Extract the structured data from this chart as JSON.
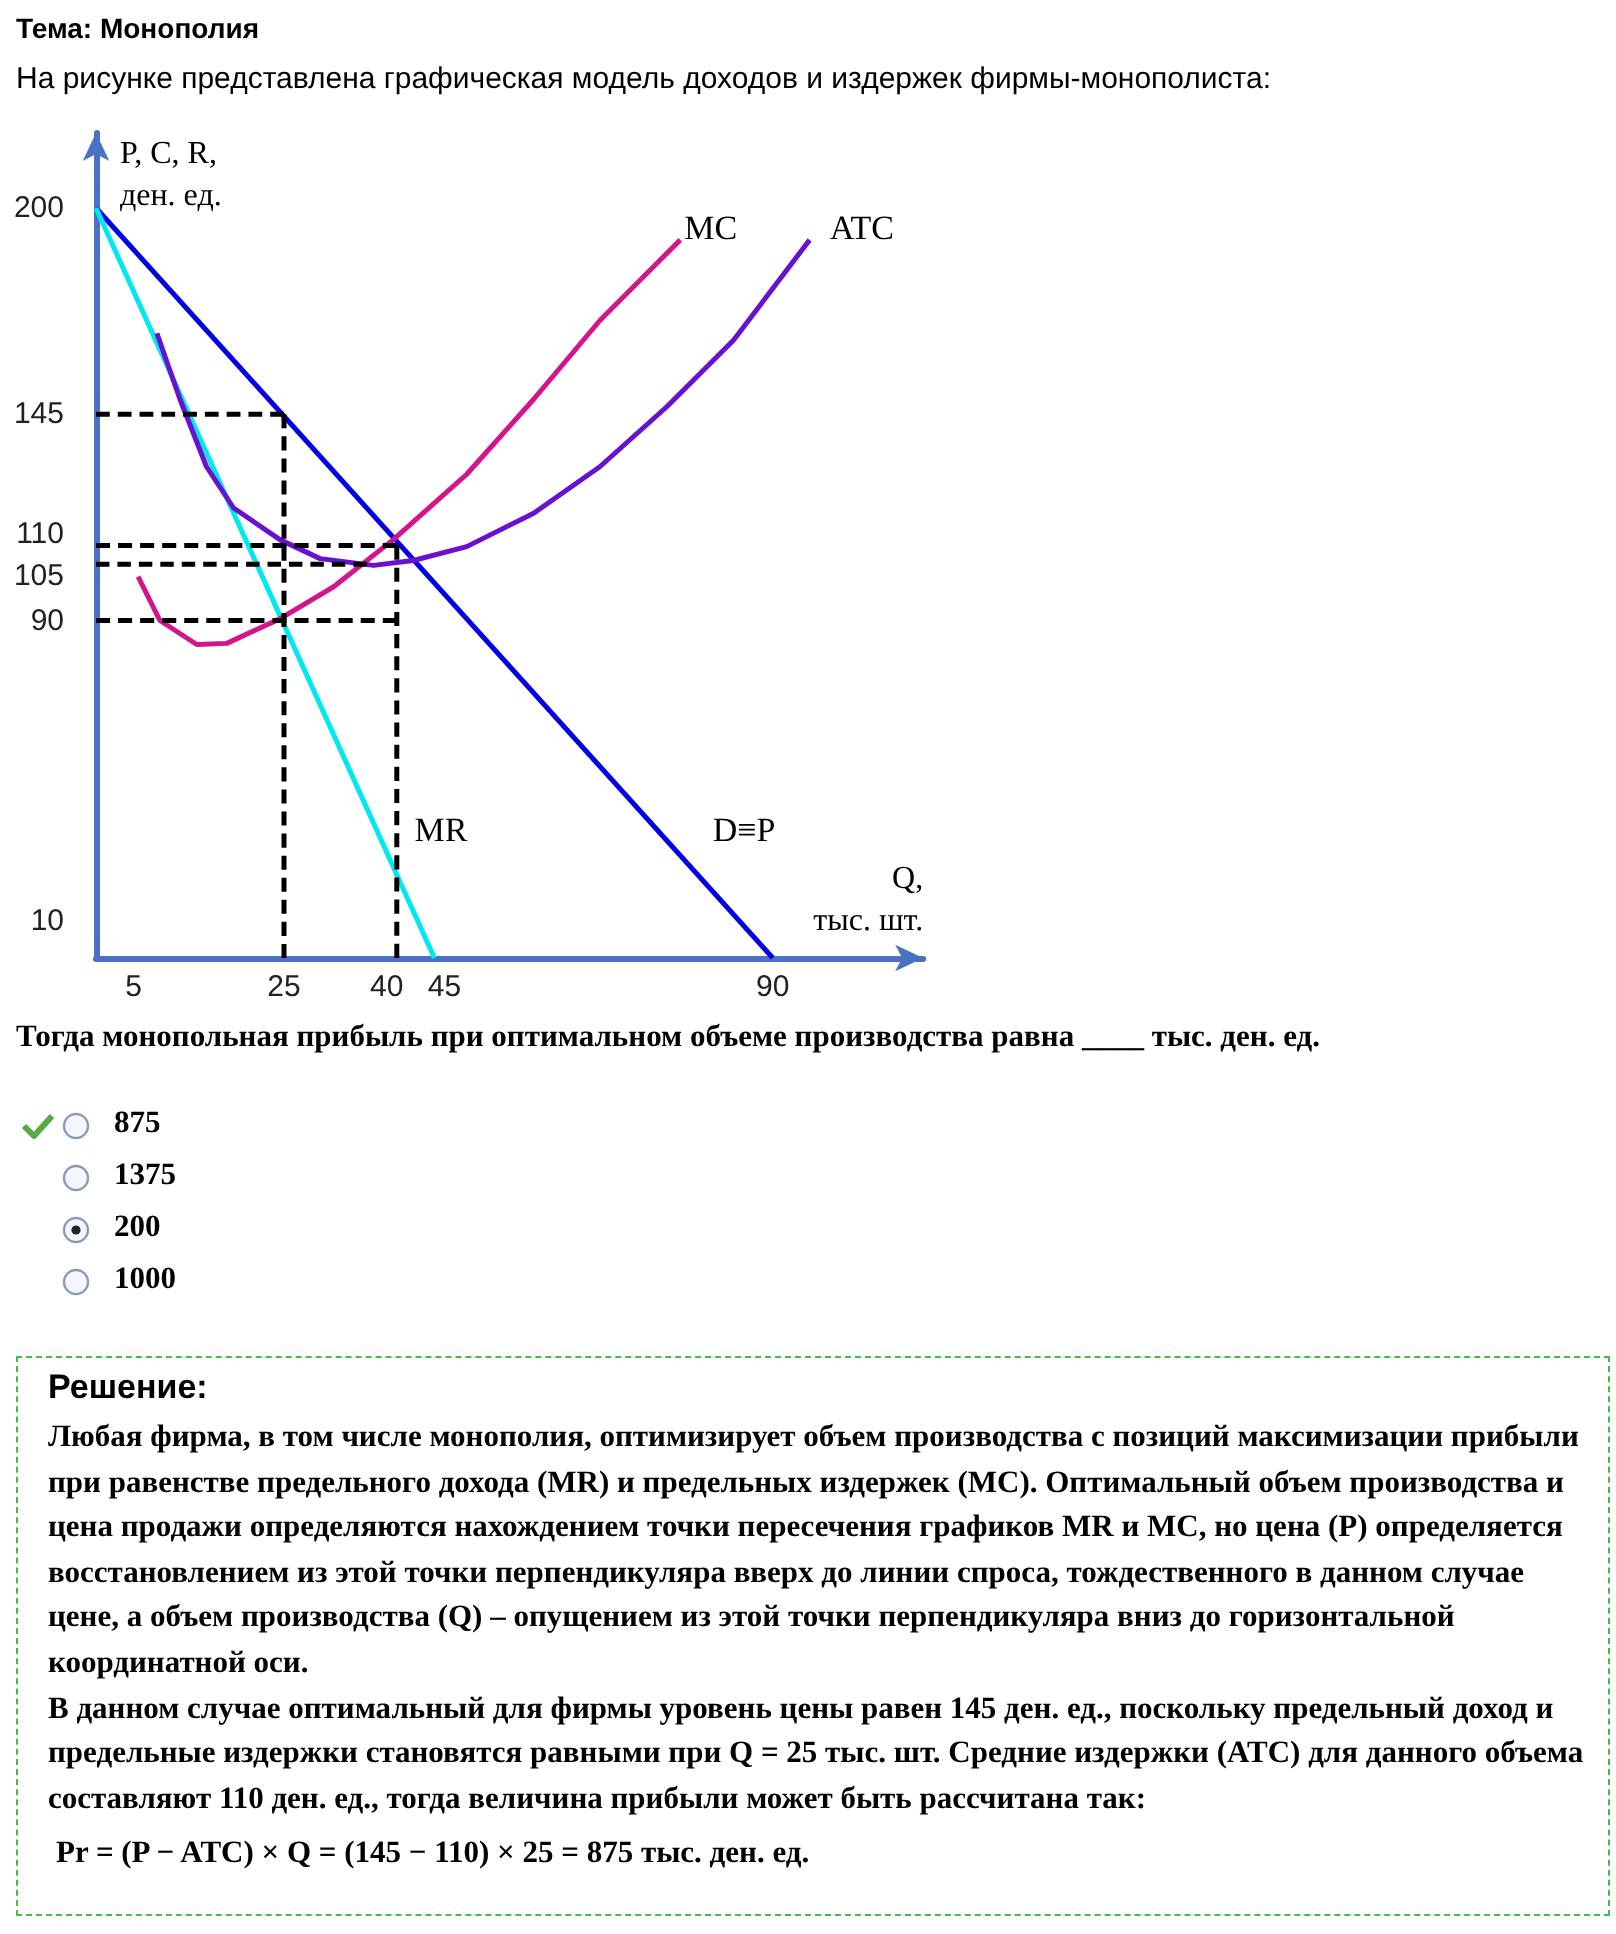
{
  "chart_data": {
    "type": "line",
    "title": "Тема: Монополия",
    "subtitle": "На рисунке представлена графическая модель доходов и издержек фирмы-монополиста:",
    "xlabel": "Q,\nтыс. шт.",
    "ylabel": "P, C, R,\nден. ед.",
    "xlim": [
      0,
      110
    ],
    "ylim": [
      0,
      220
    ],
    "xticks": [
      5,
      25,
      40,
      45,
      90
    ],
    "yticks": [
      10,
      90,
      105,
      110,
      145,
      200
    ],
    "grid": false,
    "legend": false,
    "marker": "none",
    "series": [
      {
        "name": "D≡P",
        "color": "#0000e6",
        "line_style": "solid",
        "x": [
          0,
          90
        ],
        "values": [
          200,
          0
        ]
      },
      {
        "name": "MR",
        "color": "#00e8f0",
        "line_style": "solid",
        "x": [
          0,
          45
        ],
        "values": [
          200,
          0
        ]
      },
      {
        "name": "MC",
        "color": "#d4148c",
        "line_style": "solid",
        "x": [
          5.6,
          8.5,
          13.4,
          17.4,
          24.5,
          31.6,
          39.5,
          49.3,
          58.2,
          67,
          77.7
        ],
        "values": [
          101.7,
          90,
          83.6,
          83.9,
          90.5,
          99,
          111.5,
          129,
          149,
          170,
          191.5
        ]
      },
      {
        "name": "ATC",
        "color": "#6a10d0",
        "line_style": "solid",
        "x": [
          8.1,
          11.2,
          14.7,
          18.3,
          24.5,
          29.8,
          36.9,
          42.2,
          49.3,
          58.2,
          67,
          75.9,
          84.8,
          94.9
        ],
        "values": [
          166.6,
          148.8,
          131,
          120,
          111.5,
          106.5,
          104.7,
          106,
          109.7,
          118.6,
          131,
          147,
          164.8,
          191.5
        ]
      },
      {
        "color": "#000000",
        "line_style": "dashed",
        "x": [
          0,
          25
        ],
        "values": [
          145,
          145
        ]
      },
      {
        "color": "#000000",
        "line_style": "dashed",
        "x": [
          25,
          25
        ],
        "values": [
          145,
          0
        ]
      },
      {
        "color": "#000000",
        "line_style": "dashed",
        "x": [
          0,
          40
        ],
        "values": [
          110,
          110
        ]
      },
      {
        "color": "#000000",
        "line_style": "dashed",
        "x": [
          0,
          36
        ],
        "values": [
          105,
          105
        ]
      },
      {
        "color": "#000000",
        "line_style": "dashed",
        "x": [
          0,
          40
        ],
        "values": [
          90,
          90
        ]
      },
      {
        "color": "#000000",
        "line_style": "dashed",
        "x": [
          40,
          40
        ],
        "values": [
          110,
          0
        ]
      }
    ],
    "annotations": [
      "Тогда монопольная прибыль при оптимальном объеме производства равна ____ тыс. ден. ед.",
      "875",
      "1375",
      "200",
      "1000",
      "Решение:",
      "Любая фирма, в том числе монополия, оптимизирует объем производства с позиций максимизации прибыли при равенстве предельного дохода (MR) и предельных издержек (MC). Оптимальный объем производства и цена продажи определяются нахождением точки пересечения графиков MR и MC, но цена (P) определяется восстановлением из этой точки перпендикуляра вверх до линии спроса, тождественного в данном случае цене, а объем производства (Q) – опущением из этой точки перпендикуляра вниз до горизонтальной координатной оси.",
      "В данном случае оптимальный для фирмы уровень цены равен 145 ден. ед., поскольку предельный доход и предельные издержки становятся равными при Q = 25 тыс. шт. Средние издержки (ATC) для данного объема составляют 110 ден. ед., тогда величина прибыли может быть рассчитана так:",
      "Pr = (P − ATC) × Q = (145 − 110) × 25 = 875  тыс. ден. ед."
    ]
  }
}
